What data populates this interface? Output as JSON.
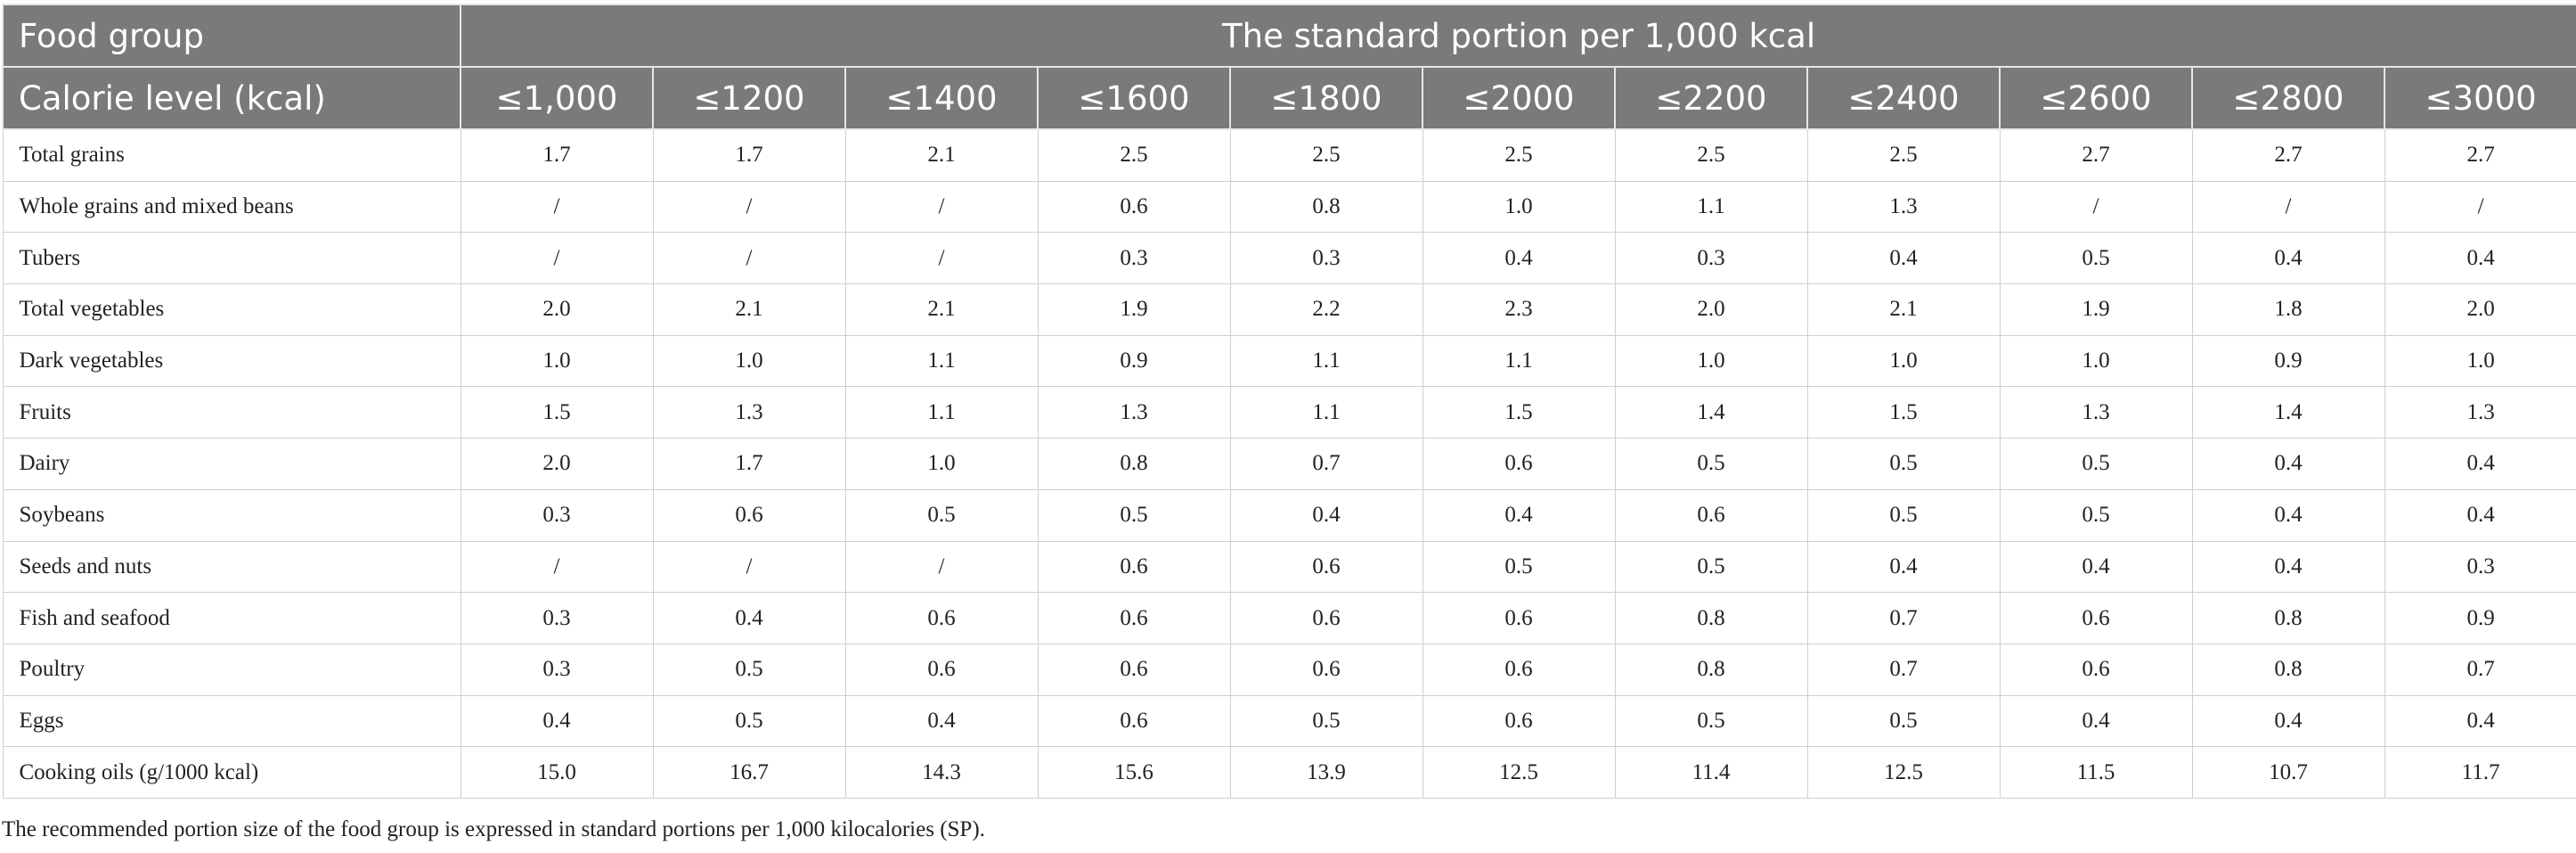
{
  "table": {
    "header_row1": {
      "first": "Food group",
      "span": "The standard portion per 1,000 kcal"
    },
    "header_row2": {
      "first": "Calorie level (kcal)",
      "levels": [
        "≤1,000",
        "≤1200",
        "≤1400",
        "≤1600",
        "≤1800",
        "≤2000",
        "≤2200",
        "≤2400",
        "≤2600",
        "≤2800",
        "≤3000"
      ]
    },
    "rows": [
      {
        "label": "Total grains",
        "values": [
          "1.7",
          "1.7",
          "2.1",
          "2.5",
          "2.5",
          "2.5",
          "2.5",
          "2.5",
          "2.7",
          "2.7",
          "2.7"
        ]
      },
      {
        "label": "Whole grains and mixed beans",
        "values": [
          "/",
          "/",
          "/",
          "0.6",
          "0.8",
          "1.0",
          "1.1",
          "1.3",
          "/",
          "/",
          "/"
        ]
      },
      {
        "label": "Tubers",
        "values": [
          "/",
          "/",
          "/",
          "0.3",
          "0.3",
          "0.4",
          "0.3",
          "0.4",
          "0.5",
          "0.4",
          "0.4"
        ]
      },
      {
        "label": "Total vegetables",
        "values": [
          "2.0",
          "2.1",
          "2.1",
          "1.9",
          "2.2",
          "2.3",
          "2.0",
          "2.1",
          "1.9",
          "1.8",
          "2.0"
        ]
      },
      {
        "label": "Dark vegetables",
        "values": [
          "1.0",
          "1.0",
          "1.1",
          "0.9",
          "1.1",
          "1.1",
          "1.0",
          "1.0",
          "1.0",
          "0.9",
          "1.0"
        ]
      },
      {
        "label": "Fruits",
        "values": [
          "1.5",
          "1.3",
          "1.1",
          "1.3",
          "1.1",
          "1.5",
          "1.4",
          "1.5",
          "1.3",
          "1.4",
          "1.3"
        ]
      },
      {
        "label": "Dairy",
        "values": [
          "2.0",
          "1.7",
          "1.0",
          "0.8",
          "0.7",
          "0.6",
          "0.5",
          "0.5",
          "0.5",
          "0.4",
          "0.4"
        ]
      },
      {
        "label": "Soybeans",
        "values": [
          "0.3",
          "0.6",
          "0.5",
          "0.5",
          "0.4",
          "0.4",
          "0.6",
          "0.5",
          "0.5",
          "0.4",
          "0.4"
        ]
      },
      {
        "label": "Seeds and nuts",
        "values": [
          "/",
          "/",
          "/",
          "0.6",
          "0.6",
          "0.5",
          "0.5",
          "0.4",
          "0.4",
          "0.4",
          "0.3"
        ]
      },
      {
        "label": "Fish and seafood",
        "values": [
          "0.3",
          "0.4",
          "0.6",
          "0.6",
          "0.6",
          "0.6",
          "0.8",
          "0.7",
          "0.6",
          "0.8",
          "0.9"
        ]
      },
      {
        "label": "Poultry",
        "values": [
          "0.3",
          "0.5",
          "0.6",
          "0.6",
          "0.6",
          "0.6",
          "0.8",
          "0.7",
          "0.6",
          "0.8",
          "0.7"
        ]
      },
      {
        "label": "Eggs",
        "values": [
          "0.4",
          "0.5",
          "0.4",
          "0.6",
          "0.5",
          "0.6",
          "0.5",
          "0.5",
          "0.4",
          "0.4",
          "0.4"
        ]
      },
      {
        "label": "Cooking oils (g/1000 kcal)",
        "values": [
          "15.0",
          "16.7",
          "14.3",
          "15.6",
          "13.9",
          "12.5",
          "11.4",
          "12.5",
          "11.5",
          "10.7",
          "11.7"
        ]
      }
    ]
  },
  "footnote": "The recommended portion size of the food group is expressed in standard portions per 1,000 kilocalories (SP).",
  "colors": {
    "header_bg": "#7a7a78",
    "header_text": "#ffffff",
    "border": "#cfcfcf"
  }
}
